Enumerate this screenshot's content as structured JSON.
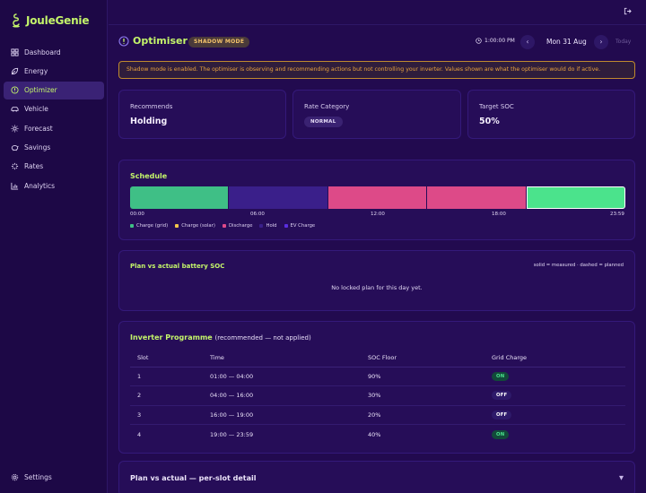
{
  "app": {
    "name": "JouleGenie"
  },
  "sidebar": {
    "items": [
      {
        "label": "Dashboard",
        "icon": "dashboard-icon",
        "active": false
      },
      {
        "label": "Energy",
        "icon": "leaf-icon",
        "active": false
      },
      {
        "label": "Optimizer",
        "icon": "optimizer-icon",
        "active": true
      },
      {
        "label": "Vehicle",
        "icon": "car-icon",
        "active": false
      },
      {
        "label": "Forecast",
        "icon": "sun-icon",
        "active": false
      },
      {
        "label": "Savings",
        "icon": "piggy-bank-icon",
        "active": false
      },
      {
        "label": "Rates",
        "icon": "zap-icon",
        "active": false
      },
      {
        "label": "Analytics",
        "icon": "bar-chart-icon",
        "active": false
      }
    ],
    "settings_label": "Settings"
  },
  "header": {
    "title": "Optimiser",
    "badge": "SHADOW MODE",
    "time": "1:00:00 PM",
    "date": "Mon 31 Aug",
    "today_label": "Today"
  },
  "banner": "Shadow mode is enabled. The optimiser is observing and recommending actions but not controlling your inverter. Values shown are what the optimiser would do if active.",
  "stats": {
    "recommends_label": "Recommends",
    "recommends_value": "Holding",
    "rate_label": "Rate Category",
    "rate_value": "NORMAL",
    "soc_label": "Target SOC",
    "soc_value": "50%"
  },
  "schedule": {
    "title": "Schedule",
    "segments": [
      {
        "type": "Charge (grid)",
        "start_hour": 0,
        "end_hour": 4.8
      },
      {
        "type": "EV Charge",
        "start_hour": 4.8,
        "end_hour": 9.6
      },
      {
        "type": "Discharge",
        "start_hour": 9.6,
        "end_hour": 14.4
      },
      {
        "type": "Discharge",
        "start_hour": 14.4,
        "end_hour": 19.2
      },
      {
        "type": "Charge (grid) bright",
        "start_hour": 19.2,
        "end_hour": 24
      }
    ],
    "ticks": [
      "00:00",
      "06:00",
      "12:00",
      "18:00",
      "23:59"
    ],
    "legend": [
      {
        "label": "Charge (grid)",
        "color": "#3fbf86"
      },
      {
        "label": "Charge (solar)",
        "color": "#f5c64a"
      },
      {
        "label": "Discharge",
        "color": "#e04a8a"
      },
      {
        "label": "Hold",
        "color": "#3a1f8a"
      },
      {
        "label": "EV Charge",
        "color": "#5a2ee0"
      }
    ],
    "colors": {
      "Charge (grid)": "#3fbf86",
      "EV Charge": "#3a1f8a",
      "Discharge": "#dd4a88",
      "Charge (grid) bright": "#4be38c"
    }
  },
  "soc_plan": {
    "title": "Plan vs actual battery SOC",
    "note": "solid = measured · dashed = planned",
    "empty": "No locked plan for this day yet."
  },
  "inverter": {
    "title": "Inverter Programme",
    "subtitle": "(recommended — not applied)",
    "columns": [
      "Slot",
      "Time",
      "SOC Floor",
      "Grid Charge"
    ],
    "rows": [
      {
        "slot": "1",
        "time": "01:00 — 04:00",
        "soc": "90%",
        "grid": "ON"
      },
      {
        "slot": "2",
        "time": "04:00 — 16:00",
        "soc": "30%",
        "grid": "OFF"
      },
      {
        "slot": "3",
        "time": "16:00 — 19:00",
        "soc": "20%",
        "grid": "OFF"
      },
      {
        "slot": "4",
        "time": "19:00 — 23:59",
        "soc": "40%",
        "grid": "ON"
      }
    ]
  },
  "detail": {
    "title": "Plan vs actual — per-slot detail"
  }
}
